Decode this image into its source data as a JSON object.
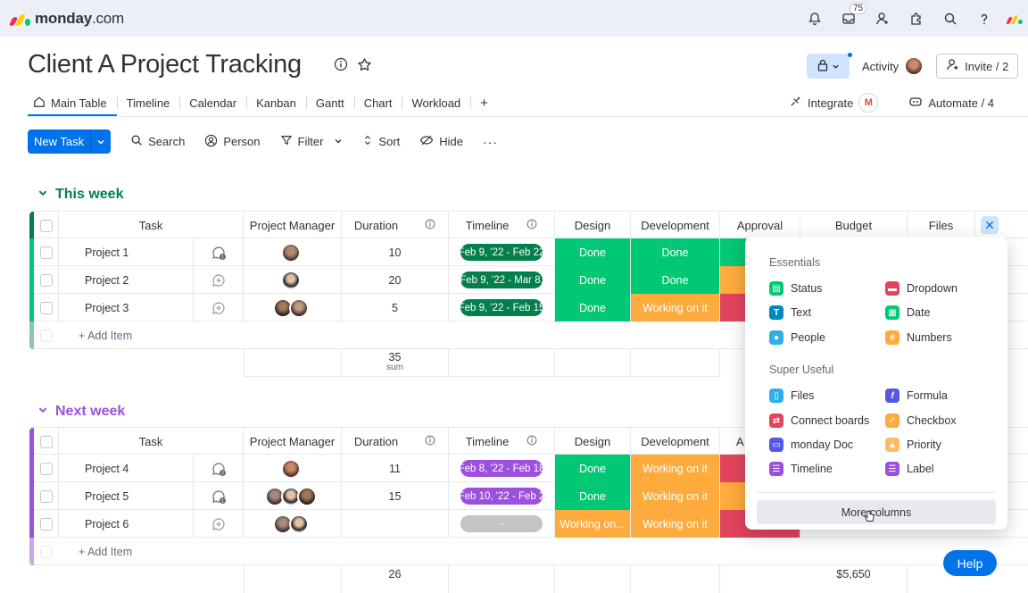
{
  "brand": {
    "name_bold": "monday",
    "name_light": ".com"
  },
  "topbar": {
    "inbox_count": "75"
  },
  "board": {
    "title": "Client A Project Tracking"
  },
  "header": {
    "activity": "Activity",
    "invite": "Invite / 2"
  },
  "tabs": [
    {
      "label": "Main Table"
    },
    {
      "label": "Timeline"
    },
    {
      "label": "Calendar"
    },
    {
      "label": "Kanban"
    },
    {
      "label": "Gantt"
    },
    {
      "label": "Chart"
    },
    {
      "label": "Workload"
    },
    {
      "label": "+"
    }
  ],
  "tabs_right": {
    "integrate": "Integrate",
    "gmail": "M",
    "automate": "Automate / 4"
  },
  "toolbar": {
    "new_task": "New Task",
    "search": "Search",
    "person": "Person",
    "filter": "Filter",
    "sort": "Sort",
    "hide": "Hide",
    "more": "···"
  },
  "columns": {
    "task": "Task",
    "pm": "Project Manager",
    "duration": "Duration",
    "timeline": "Timeline",
    "design": "Design",
    "development": "Development",
    "approval": "Approval",
    "approval_short": "A",
    "budget": "Budget",
    "files": "Files"
  },
  "groups": {
    "this_week": {
      "title": "This week",
      "color": "#037f4c",
      "rows": [
        {
          "name": "Project 1",
          "duration": "10",
          "timeline": "Feb 9, '22 - Feb 22",
          "design": "Done",
          "development": "Done"
        },
        {
          "name": "Project 2",
          "duration": "20",
          "timeline": "Feb 9, '22 - Mar 8,",
          "design": "Done",
          "development": "Done"
        },
        {
          "name": "Project 3",
          "duration": "5",
          "timeline": "Feb 9, '22 - Feb 15",
          "design": "Done",
          "development": "Working on it"
        }
      ],
      "add_item": "+ Add Item",
      "sum_value": "35",
      "sum_label": "sum"
    },
    "next_week": {
      "title": "Next week",
      "color": "#9d50dd",
      "rows": [
        {
          "name": "Project 4",
          "duration": "11",
          "timeline": "Feb 8, '22 - Feb 18",
          "design": "Done",
          "development": "Working on it"
        },
        {
          "name": "Project 5",
          "duration": "15",
          "timeline": "Feb 10, '22 - Feb 2",
          "design": "Done",
          "development": "Working on it"
        },
        {
          "name": "Project 6",
          "duration": "",
          "timeline": "-",
          "design": "Working on...",
          "development": "Working on it"
        }
      ],
      "add_item": "+ Add Item",
      "sum_value": "26",
      "budget_sum": "$5,650"
    }
  },
  "column_menu": {
    "essentials_title": "Essentials",
    "essentials": [
      {
        "label": "Status",
        "icon": "status-icon",
        "color": "#00c875"
      },
      {
        "label": "Dropdown",
        "icon": "dropdown-icon",
        "color": "#e2445c"
      },
      {
        "label": "Text",
        "icon": "text-icon",
        "color": "#0086c0"
      },
      {
        "label": "Date",
        "icon": "date-icon",
        "color": "#00c875"
      },
      {
        "label": "People",
        "icon": "people-icon",
        "color": "#2dafe8"
      },
      {
        "label": "Numbers",
        "icon": "numbers-icon",
        "color": "#fdab3d"
      }
    ],
    "useful_title": "Super Useful",
    "useful": [
      {
        "label": "Files",
        "icon": "files-icon",
        "color": "#2dafe8"
      },
      {
        "label": "Formula",
        "icon": "formula-icon",
        "color": "#5559df"
      },
      {
        "label": "Connect boards",
        "icon": "connect-boards-icon",
        "color": "#e2445c"
      },
      {
        "label": "Checkbox",
        "icon": "checkbox-icon",
        "color": "#fdab3d"
      },
      {
        "label": "monday Doc",
        "icon": "doc-icon",
        "color": "#5559df"
      },
      {
        "label": "Priority",
        "icon": "priority-icon",
        "color": "#fdbc64"
      },
      {
        "label": "Timeline",
        "icon": "timeline-icon",
        "color": "#9d50dd"
      },
      {
        "label": "Label",
        "icon": "label-icon",
        "color": "#9d50dd"
      }
    ],
    "more_columns": "More columns"
  },
  "help": "Help",
  "colors": {
    "done": "#00c875",
    "working": "#fdab3d",
    "stuck": "#e2445c",
    "accent": "#0073ea"
  }
}
